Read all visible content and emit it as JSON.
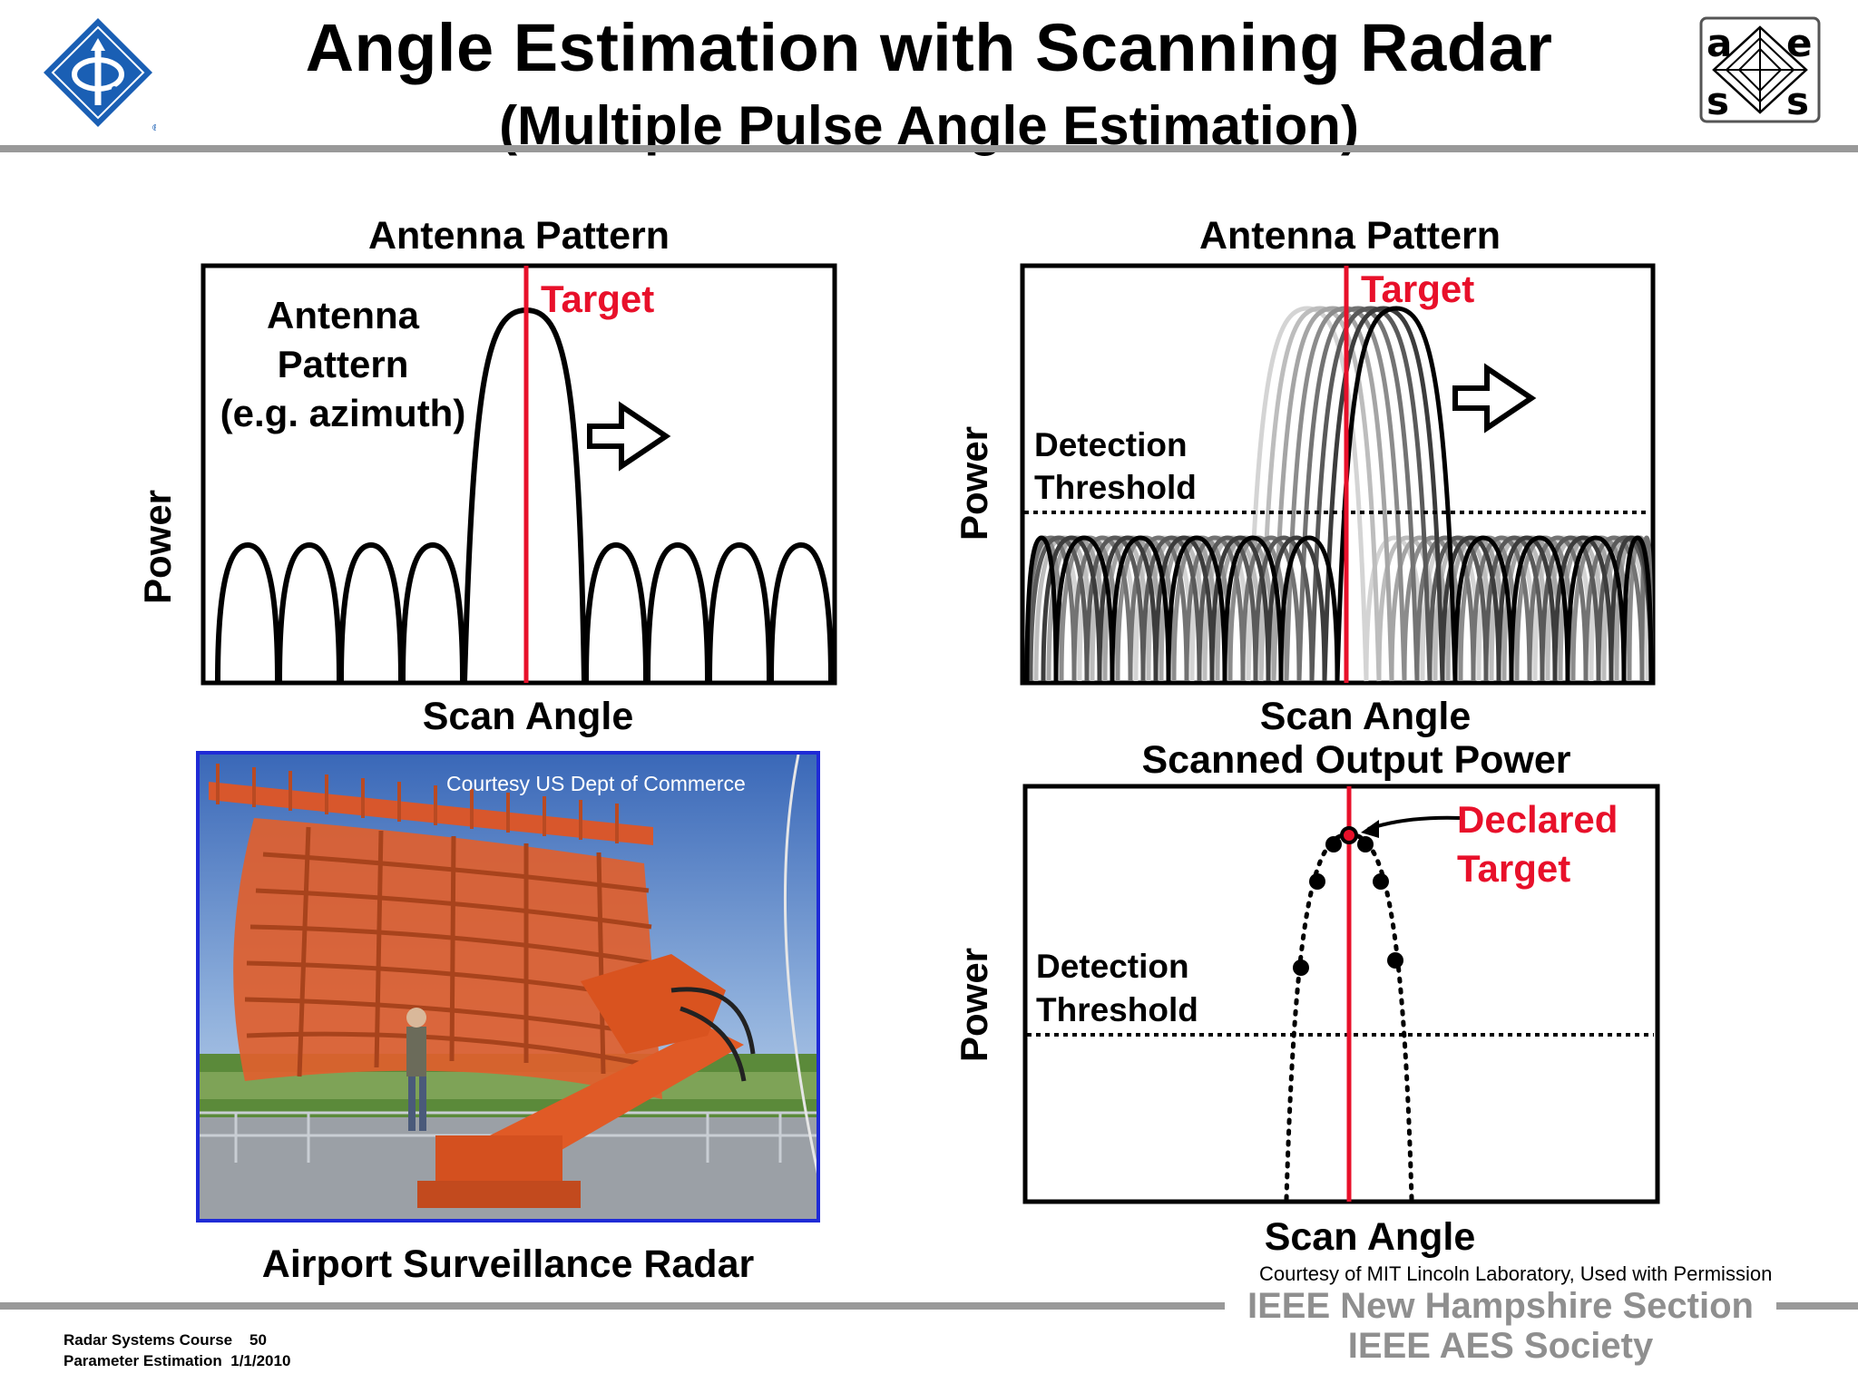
{
  "header": {
    "title": "Angle Estimation with Scanning Radar",
    "subtitle": "(Multiple Pulse Angle Estimation)"
  },
  "colors": {
    "accent": "#e8102a",
    "rule": "#999999",
    "logo_blue": "#1a5fb4",
    "photo_border": "#1f2bd6"
  },
  "panel_tl": {
    "heading": "Antenna Pattern",
    "pattern_label": [
      "Antenna",
      "Pattern",
      "(e.g. azimuth)"
    ],
    "target_label": "Target",
    "ylabel": "Power",
    "xlabel": "Scan Angle"
  },
  "panel_tr": {
    "heading": "Antenna Pattern",
    "target_label": "Target",
    "threshold_label": [
      "Detection",
      "Threshold"
    ],
    "ylabel": "Power",
    "xlabel": "Scan Angle"
  },
  "panel_br": {
    "heading": "Scanned Output Power",
    "declared_label": [
      "Declared",
      "Target"
    ],
    "threshold_label": [
      "Detection",
      "Threshold"
    ],
    "ylabel": "Power",
    "xlabel": "Scan Angle",
    "credit": "Courtesy of MIT Lincoln Laboratory, Used with Permission"
  },
  "photo": {
    "credit": "Courtesy US Dept of Commerce",
    "caption": "Airport Surveillance Radar"
  },
  "footer": {
    "course": "Radar Systems Course",
    "page": "50",
    "topic": "Parameter Estimation",
    "date": "1/1/2010",
    "org1": "IEEE New Hampshire Section",
    "org2": "IEEE AES Society"
  },
  "icons": {
    "left_logo": "ieee-diamond-logo",
    "right_logo": "aess-logo"
  }
}
